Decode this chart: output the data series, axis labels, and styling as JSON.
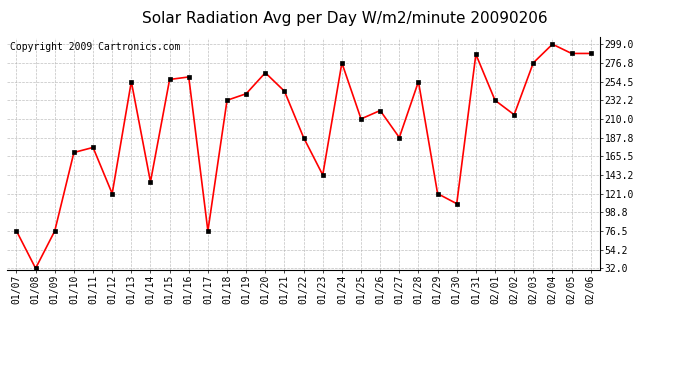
{
  "title": "Solar Radiation Avg per Day W/m2/minute 20090206",
  "copyright": "Copyright 2009 Cartronics.com",
  "labels": [
    "01/07",
    "01/08",
    "01/09",
    "01/10",
    "01/11",
    "01/12",
    "01/13",
    "01/14",
    "01/15",
    "01/16",
    "01/17",
    "01/18",
    "01/19",
    "01/20",
    "01/21",
    "01/22",
    "01/23",
    "01/24",
    "01/25",
    "01/26",
    "01/27",
    "01/28",
    "01/29",
    "01/30",
    "01/31",
    "02/01",
    "02/02",
    "02/03",
    "02/04",
    "02/05",
    "02/06"
  ],
  "values": [
    76.5,
    32.0,
    76.5,
    170.0,
    176.0,
    121.0,
    254.5,
    135.0,
    257.0,
    260.0,
    76.5,
    232.2,
    240.0,
    265.0,
    243.0,
    187.8,
    143.2,
    276.8,
    210.0,
    220.0,
    187.8,
    254.5,
    121.0,
    109.0,
    287.0,
    232.2,
    215.0,
    276.8,
    299.0,
    288.0,
    288.0
  ],
  "ymin": 32.0,
  "ymax": 299.0,
  "yticks": [
    32.0,
    54.2,
    76.5,
    98.8,
    121.0,
    143.2,
    165.5,
    187.8,
    210.0,
    232.2,
    254.5,
    276.8,
    299.0
  ],
  "line_color": "#ff0000",
  "marker_color": "#000000",
  "bg_color": "#ffffff",
  "grid_color": "#b0b0b0",
  "title_fontsize": 11,
  "copyright_fontsize": 7,
  "tick_fontsize": 7
}
